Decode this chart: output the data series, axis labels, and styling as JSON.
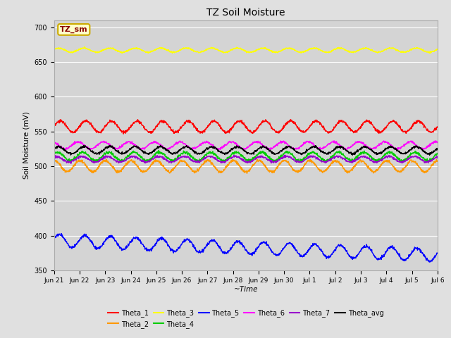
{
  "title": "TZ Soil Moisture",
  "xlabel": "~Time",
  "ylabel": "Soil Moisture (mV)",
  "ylim": [
    350,
    710
  ],
  "yticks": [
    350,
    400,
    450,
    500,
    550,
    600,
    650,
    700
  ],
  "background_color": "#e0e0e0",
  "plot_bg_color": "#d4d4d4",
  "annotation_text": "TZ_sm",
  "annotation_bg": "#ffffcc",
  "annotation_border": "#ccaa00",
  "annotation_text_color": "#880000",
  "series": [
    {
      "name": "Theta_1",
      "color": "#ff0000",
      "base": 557,
      "amp": 8,
      "trend": -0.0,
      "phase": 0.0,
      "freq": 1.0,
      "noise": 1.0
    },
    {
      "name": "Theta_2",
      "color": "#ff9900",
      "base": 500,
      "amp": 8,
      "trend": -0.0,
      "phase": 1.5,
      "freq": 1.0,
      "noise": 1.0
    },
    {
      "name": "Theta_3",
      "color": "#ffff00",
      "base": 667,
      "amp": 3,
      "trend": 0.0,
      "phase": 0.5,
      "freq": 1.0,
      "noise": 0.5
    },
    {
      "name": "Theta_4",
      "color": "#00cc00",
      "base": 514,
      "amp": 6,
      "trend": -0.0,
      "phase": 0.8,
      "freq": 1.0,
      "noise": 1.0
    },
    {
      "name": "Theta_5",
      "color": "#0000ff",
      "base": 393,
      "amp": 9,
      "trend": -1.4,
      "phase": 0.3,
      "freq": 1.0,
      "noise": 1.0
    },
    {
      "name": "Theta_6",
      "color": "#ff00ff",
      "base": 530,
      "amp": 5,
      "trend": -0.0,
      "phase": 2.0,
      "freq": 1.0,
      "noise": 0.8
    },
    {
      "name": "Theta_7",
      "color": "#9900cc",
      "base": 510,
      "amp": 4,
      "trend": 0.0,
      "phase": 1.0,
      "freq": 1.0,
      "noise": 0.8
    },
    {
      "name": "Theta_avg",
      "color": "#000000",
      "base": 523,
      "amp": 5,
      "trend": -0.0,
      "phase": 0.5,
      "freq": 1.0,
      "noise": 0.8
    }
  ],
  "x_tick_labels": [
    "Jun 21",
    "Jun 22",
    "Jun 23",
    "Jun 24",
    "Jun 25",
    "Jun 26",
    "Jun 27",
    "Jun 28",
    "Jun 29",
    "Jun 30",
    "Jul 1",
    "Jul 2",
    "Jul 3",
    "Jul 4",
    "Jul 5",
    "Jul 6"
  ],
  "n_points": 1500,
  "legend_ncol1": 6,
  "legend_ncol2": 2
}
